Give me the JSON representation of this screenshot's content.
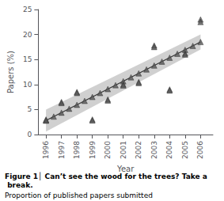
{
  "chart_data": {
    "type": "scatter",
    "xlabel": "Year",
    "ylabel": "Papers (%)",
    "annotations": [
      "Figure 1│ Can’t see the wood for the trees? Take a break.",
      "Proportion of published papers submitted"
    ],
    "xlim": [
      1995.5,
      2006.8
    ],
    "xticks": [
      1996,
      1997,
      1998,
      1999,
      2000,
      2001,
      2002,
      2003,
      2004,
      2005,
      2006
    ],
    "ylim": [
      0,
      25
    ],
    "yticks": [
      0,
      5,
      10,
      15,
      20,
      25
    ],
    "grid": false,
    "series": [
      {
        "type": "band",
        "x": [
          1996,
          2006
        ],
        "lower": [
          0.6,
          17.0
        ],
        "upper": [
          5.0,
          20.0
        ],
        "color": "#d0d0d0"
      },
      {
        "type": "line",
        "x": [
          1996,
          2006
        ],
        "values": [
          2.8,
          18.5
        ],
        "color": "#333333"
      },
      {
        "type": "scatter",
        "marker": "triangle",
        "color": "#555555",
        "x": [
          1996.0,
          1996.5,
          1997.0,
          1997.5,
          1998.0,
          1998.5,
          1999.0,
          1999.5,
          2000.0,
          2000.5,
          2001.0,
          2001.5,
          2002.0,
          2002.5,
          2003.0,
          2003.5,
          2004.0,
          2004.5,
          2005.0,
          2005.5,
          2006.0
        ],
        "values": [
          2.8,
          3.585,
          4.37,
          5.155,
          5.94,
          6.725,
          7.51,
          8.295,
          9.08,
          9.865,
          10.65,
          11.435,
          12.22,
          13.005,
          13.79,
          14.575,
          15.36,
          16.145,
          16.93,
          17.715,
          18.5
        ]
      },
      {
        "type": "scatter",
        "marker": "triangle",
        "color": "#555555",
        "x": [
          1996,
          1996,
          1997,
          1997,
          1998,
          1998,
          1999,
          1999,
          2000,
          2000,
          2001,
          2001,
          2002,
          2002,
          2003,
          2003,
          2004,
          2004,
          2005,
          2005,
          2006,
          2006
        ],
        "values": [
          3.0,
          2.8,
          6.5,
          6.3,
          8.5,
          8.3,
          3.0,
          2.8,
          7.0,
          6.8,
          10.0,
          9.8,
          10.5,
          10.3,
          17.8,
          17.5,
          9.0,
          8.8,
          16.2,
          16.0,
          23.0,
          22.5
        ]
      }
    ]
  }
}
